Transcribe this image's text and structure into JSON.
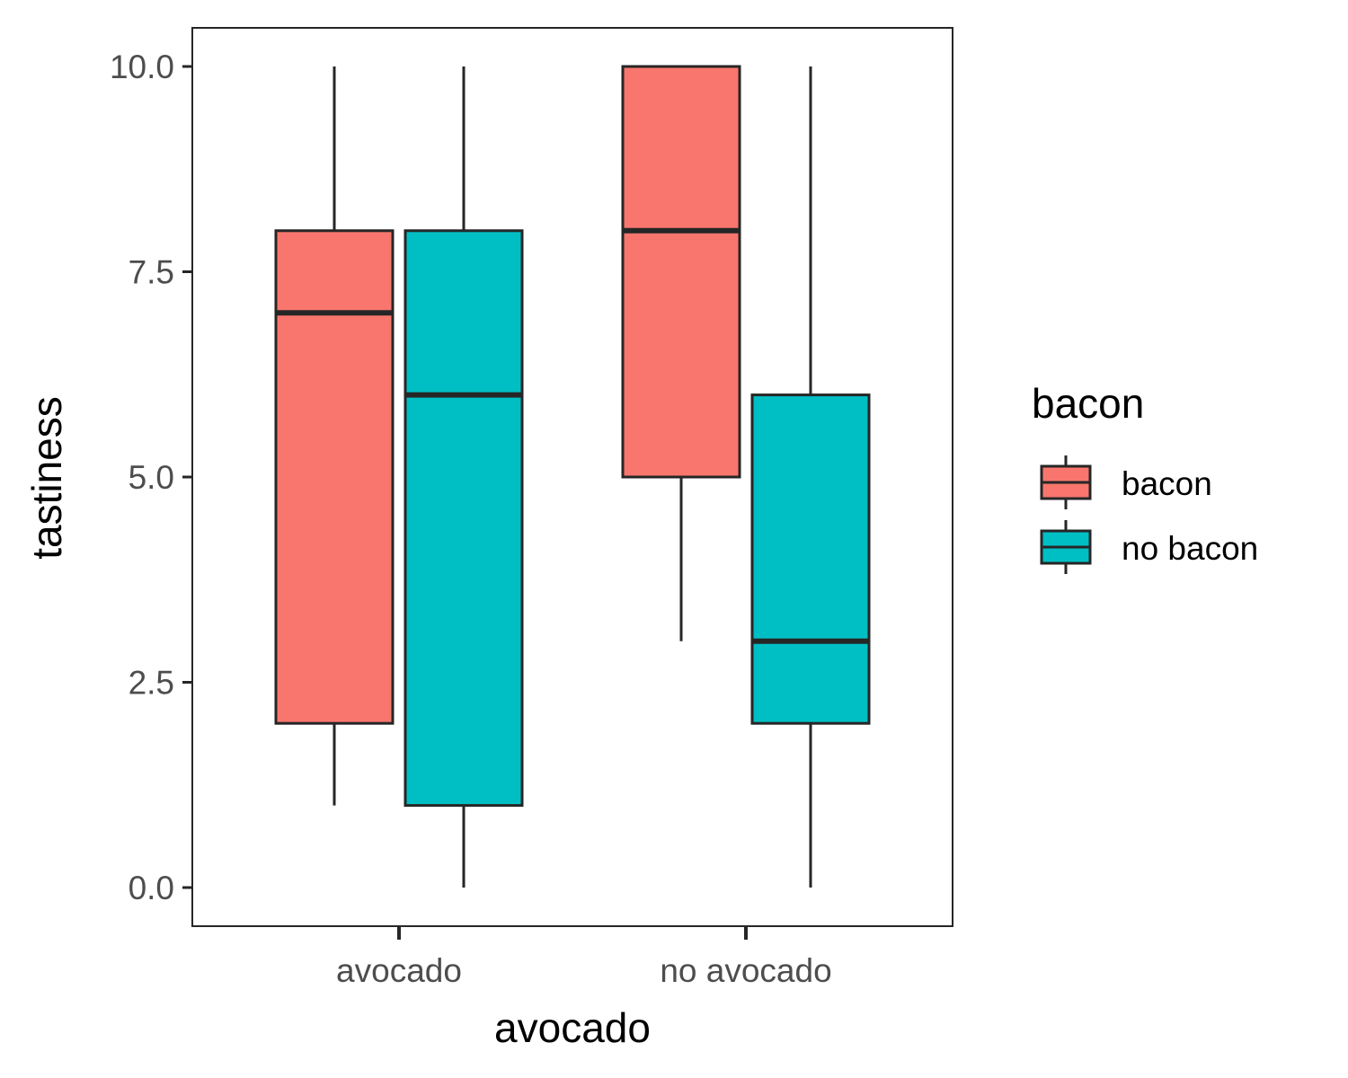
{
  "chart_data": {
    "type": "boxplot",
    "title": "",
    "xlabel": "avocado",
    "ylabel": "tastiness",
    "categories": [
      "avocado",
      "no avocado"
    ],
    "ylim": [
      -0.5,
      10.5
    ],
    "yticks": [
      0,
      2.5,
      5,
      7.5,
      10
    ],
    "ytick_labels": [
      "0.0",
      "2.5",
      "5.0",
      "7.5",
      "10.0"
    ],
    "grid": false,
    "legend": {
      "title": "bacon",
      "position": "right"
    },
    "series": [
      {
        "name": "bacon",
        "color": "#F8766D",
        "boxes": [
          {
            "category": "avocado",
            "min": 1,
            "q1": 2,
            "median": 7,
            "q3": 8,
            "max": 10
          },
          {
            "category": "no avocado",
            "min": 3,
            "q1": 5,
            "median": 8,
            "q3": 10,
            "max": 10
          }
        ]
      },
      {
        "name": "no bacon",
        "color": "#00BFC4",
        "boxes": [
          {
            "category": "avocado",
            "min": 0,
            "q1": 1,
            "median": 6,
            "q3": 8,
            "max": 10
          },
          {
            "category": "no avocado",
            "min": 0,
            "q1": 2,
            "median": 3,
            "q3": 6,
            "max": 10
          }
        ]
      }
    ]
  }
}
